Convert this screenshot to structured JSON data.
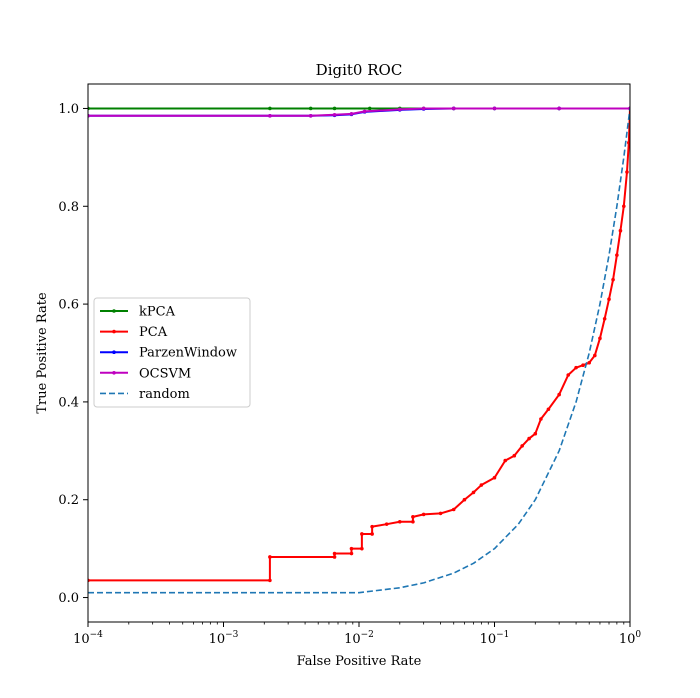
{
  "chart_data": {
    "type": "line",
    "title": "Digit0 ROC",
    "xlabel": "False Positive Rate",
    "ylabel": "True Positive Rate",
    "xscale": "log",
    "xlim": [
      0.0001,
      1
    ],
    "ylim": [
      -0.05,
      1.05
    ],
    "grid": false,
    "legend_position": "center-left",
    "x_ticks": [
      {
        "value": 0.0001,
        "base": "10",
        "exp": "−4"
      },
      {
        "value": 0.001,
        "base": "10",
        "exp": "−3"
      },
      {
        "value": 0.01,
        "base": "10",
        "exp": "−2"
      },
      {
        "value": 0.1,
        "base": "10",
        "exp": "−1"
      },
      {
        "value": 1,
        "base": "10",
        "exp": "0"
      }
    ],
    "y_ticks": [
      "0.0",
      "0.2",
      "0.4",
      "0.6",
      "0.8",
      "1.0"
    ],
    "series": [
      {
        "name": "kPCA",
        "color": "#008000",
        "style": "solid-marker",
        "x": [
          0.0001,
          0.0022,
          0.0044,
          0.0066,
          0.012,
          0.02,
          0.03,
          0.05,
          0.1,
          0.3,
          1
        ],
        "y": [
          1.0,
          1.0,
          1.0,
          1.0,
          1.0,
          1.0,
          1.0,
          1.0,
          1.0,
          1.0,
          1.0
        ]
      },
      {
        "name": "PCA",
        "color": "#ff0000",
        "style": "solid-marker",
        "x": [
          0.0001,
          0.0022,
          0.0022,
          0.0066,
          0.0066,
          0.0088,
          0.0088,
          0.0105,
          0.0105,
          0.0125,
          0.0125,
          0.016,
          0.02,
          0.025,
          0.025,
          0.03,
          0.04,
          0.05,
          0.06,
          0.07,
          0.08,
          0.1,
          0.12,
          0.14,
          0.16,
          0.18,
          0.2,
          0.22,
          0.25,
          0.3,
          0.35,
          0.4,
          0.45,
          0.5,
          0.55,
          0.6,
          0.65,
          0.7,
          0.75,
          0.8,
          0.85,
          0.9,
          0.95,
          0.98,
          1
        ],
        "y": [
          0.035,
          0.035,
          0.083,
          0.083,
          0.09,
          0.09,
          0.1,
          0.1,
          0.13,
          0.13,
          0.145,
          0.15,
          0.155,
          0.155,
          0.165,
          0.17,
          0.172,
          0.18,
          0.2,
          0.215,
          0.23,
          0.245,
          0.28,
          0.29,
          0.31,
          0.325,
          0.335,
          0.365,
          0.385,
          0.415,
          0.455,
          0.47,
          0.475,
          0.48,
          0.495,
          0.53,
          0.57,
          0.61,
          0.65,
          0.7,
          0.75,
          0.8,
          0.87,
          0.93,
          1.0
        ]
      },
      {
        "name": "ParzenWindow",
        "color": "#0000ff",
        "style": "solid-marker",
        "x": [
          0.0001,
          0.0022,
          0.0044,
          0.0066,
          0.0088,
          0.011,
          0.02,
          0.03,
          0.05,
          0.1,
          0.3,
          1
        ],
        "y": [
          0.985,
          0.985,
          0.985,
          0.986,
          0.988,
          0.993,
          0.997,
          0.999,
          1.0,
          1.0,
          1.0,
          1.0
        ]
      },
      {
        "name": "OCSVM",
        "color": "#bf00bf",
        "style": "solid-marker",
        "x": [
          0.0001,
          0.0022,
          0.0044,
          0.0066,
          0.0088,
          0.011,
          0.02,
          0.03,
          0.05,
          0.1,
          0.3,
          1
        ],
        "y": [
          0.985,
          0.985,
          0.985,
          0.987,
          0.989,
          0.994,
          0.998,
          1.0,
          1.0,
          1.0,
          1.0,
          1.0
        ]
      },
      {
        "name": "random",
        "color": "#1f77b4",
        "style": "dashed",
        "x": [
          0.0001,
          0.001,
          0.01,
          0.02,
          0.03,
          0.05,
          0.07,
          0.1,
          0.15,
          0.2,
          0.3,
          0.4,
          0.5,
          0.6,
          0.7,
          0.8,
          0.9,
          1
        ],
        "y": [
          0.01,
          0.01,
          0.01,
          0.02,
          0.03,
          0.05,
          0.07,
          0.1,
          0.15,
          0.2,
          0.3,
          0.4,
          0.5,
          0.6,
          0.7,
          0.8,
          0.9,
          1.0
        ]
      }
    ]
  }
}
